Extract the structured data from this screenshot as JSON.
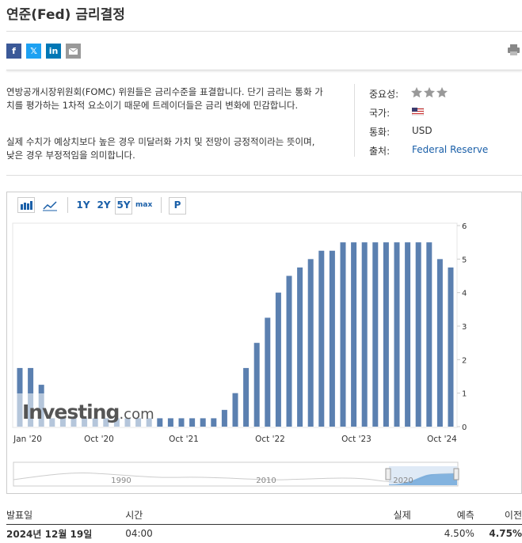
{
  "header": {
    "title": "연준(Fed) 금리결정",
    "share": [
      "f",
      "𝕏",
      "in"
    ],
    "description": [
      "연방공개시장위원회(FOMC) 위원들은 금리수준을 표결합니다. 단기 금리는 통화 가치를 평가하는 1차적 요소이기 때문에 트레이더들은 금리 변화에 민감합니다.",
      "실제 수치가 예상치보다 높은 경우 미달러화 가치 및 전망이 긍정적이라는 뜻이며, 낮은 경우 부정적임을 의미합니다."
    ]
  },
  "info": {
    "rows": [
      {
        "label": "중요성:"
      },
      {
        "label": "국가:"
      },
      {
        "label": "통화:",
        "value": "USD"
      },
      {
        "label": "출처:",
        "value": "Federal Reserve"
      }
    ]
  },
  "toolbar": {
    "ranges": [
      "1Y",
      "2Y",
      "5Y",
      "max"
    ],
    "selected": "5Y",
    "extra": "P"
  },
  "chart_data": {
    "type": "bar",
    "color": "#5b80b0",
    "watermark": "Investing",
    "watermark_suffix": ".com",
    "values": [
      1.75,
      1.75,
      1.25,
      0.25,
      0.25,
      0.25,
      0.25,
      0.25,
      0.25,
      0.25,
      0.25,
      0.25,
      0.25,
      0.25,
      0.25,
      0.25,
      0.25,
      0.25,
      0.25,
      0.5,
      1.0,
      1.75,
      2.5,
      3.25,
      4.0,
      4.5,
      4.75,
      5.0,
      5.25,
      5.25,
      5.5,
      5.5,
      5.5,
      5.5,
      5.5,
      5.5,
      5.5,
      5.5,
      5.5,
      5.0,
      4.75
    ],
    "x_labels": [
      "Jan '20",
      "Oct '20",
      "Oct '21",
      "Oct '22",
      "Oct '23",
      "Oct '24"
    ],
    "ylim": [
      0,
      6
    ],
    "yticks": [
      0,
      1,
      2,
      3,
      4,
      5,
      6
    ],
    "navigator_labels": [
      "1990",
      "2010",
      "2020"
    ]
  },
  "table": {
    "headers": [
      "발표일",
      "시간",
      "실제",
      "예측",
      "이전"
    ],
    "rows": [
      [
        "2024년 12월 19일",
        "04:00",
        null,
        "4.50%",
        "4.75%"
      ]
    ]
  }
}
